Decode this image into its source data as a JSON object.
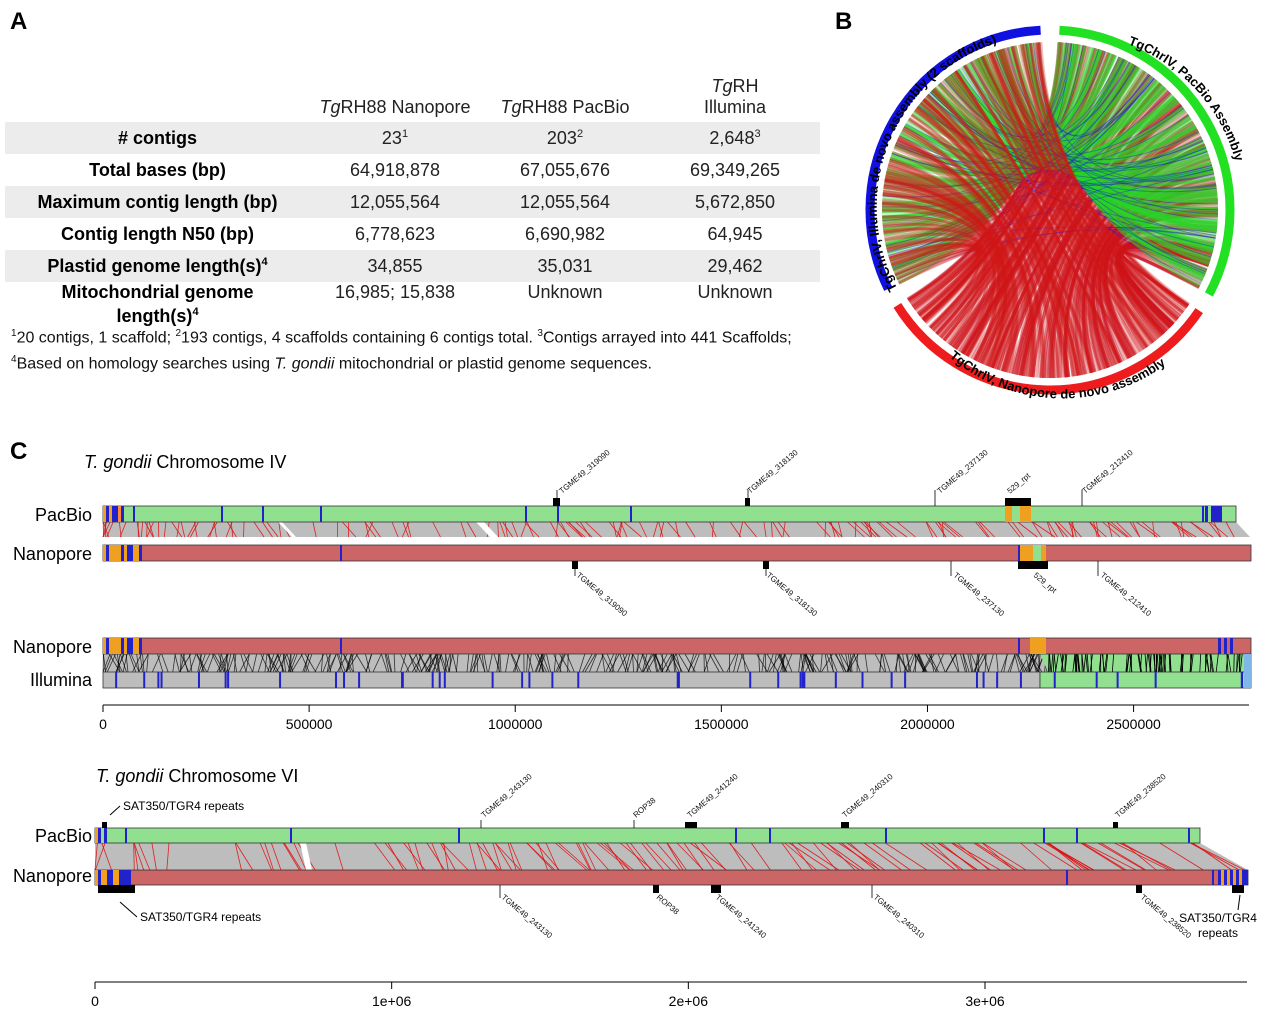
{
  "panels": {
    "a": "A",
    "b": "B",
    "c": "C"
  },
  "table": {
    "columns": [
      {
        "italic": "Tg",
        "rest": "RH88 Nanopore"
      },
      {
        "italic": "Tg",
        "rest": "RH88 PacBio"
      },
      {
        "italic": "Tg",
        "rest": "RH",
        "line2": "Illumina"
      }
    ],
    "rows": [
      {
        "label": "# contigs",
        "values": [
          "23",
          "203",
          "2,648"
        ],
        "sups": [
          "1",
          "2",
          "3"
        ]
      },
      {
        "label": "Total bases (bp)",
        "values": [
          "64,918,878",
          "67,055,676",
          "69,349,265"
        ]
      },
      {
        "label": "Maximum contig length (bp)",
        "values": [
          "12,055,564",
          "12,055,564",
          "5,672,850"
        ]
      },
      {
        "label": "Contig length N50 (bp)",
        "values": [
          "6,778,623",
          "6,690,982",
          "64,945"
        ]
      },
      {
        "label": "Plastid genome length(s)",
        "label_sup": "4",
        "values": [
          "34,855",
          "35,031",
          "29,462"
        ]
      },
      {
        "label": "Mitochondrial genome",
        "label2": "length(s)",
        "label_sup": "4",
        "values": [
          "16,985; 15,838",
          "Unknown",
          "Unknown"
        ]
      }
    ],
    "footnote": {
      "s1": "1",
      "t1": "20 contigs, 1 scaffold; ",
      "s2": "2",
      "t2": "193 contigs, 4 scaffolds containing 6 contigs total. ",
      "s3": "3",
      "t3": "Contigs arrayed into 441 Scaffolds; ",
      "s4": "4",
      "t4": "Based on homology searches using ",
      "t5": "T. gondii",
      "t6": " mitochondrial or plastid genome sequences."
    }
  },
  "circos": {
    "labels": {
      "illumina": "TgChrIV, Illumina de novo assembly (2 scaffolds)",
      "pacbio": "TgChrIV, PacBio Assembly",
      "nanopore": "TgChrIV, Nanopore de novo assembly"
    },
    "colors": {
      "illumina": "#1010e0",
      "pacbio": "#22e022",
      "nanopore": "#ee1c1c",
      "nanopore_links": "#cc1020"
    }
  },
  "chr4": {
    "title_italic": "T. gondii",
    "title_rest": " Chromosome IV",
    "track_labels": {
      "pacbio": "PacBio",
      "nanopore": "Nanopore",
      "nanopore2": "Nanopore",
      "illumina": "Illumina"
    },
    "pacbio_genes": [
      "TGME49_319090",
      "TGME49_318130",
      "TGME49_237130",
      "529_rpt",
      "TGME49_212410"
    ],
    "nanopore_genes": [
      "TGME49_319090",
      "TGME49_318130",
      "TGME49_237130",
      "529_rpt",
      "TGME49_212410"
    ],
    "axis": {
      "ticks": [
        0,
        500000,
        1000000,
        1500000,
        2000000,
        2500000
      ],
      "tick_labels": [
        "0",
        "500000",
        "1000000",
        "1500000",
        "2000000",
        "2500000"
      ]
    }
  },
  "chr6": {
    "title_italic": "T. gondii",
    "title_rest": " Chromosome VI",
    "track_labels": {
      "pacbio": "PacBio",
      "nanopore": "Nanopore"
    },
    "pacbio_genes": [
      "TGME49_243130",
      "ROP38",
      "TGME49_241240",
      "TGME49_240310",
      "TGME49_238520"
    ],
    "nanopore_genes": [
      "TGME49_243130",
      "ROP38",
      "TGME49_241240",
      "TGME49_240310",
      "TGME49_238520"
    ],
    "repeat_label": "SAT350/TGR4 repeats",
    "repeat_label_right1": "SAT350/TGR4",
    "repeat_label_right2": "repeats",
    "axis": {
      "ticks": [
        0,
        1000000,
        2000000,
        3000000
      ],
      "tick_labels": [
        "0",
        "1e+06",
        "2e+06",
        "3e+06"
      ]
    }
  },
  "colors": {
    "pacbio": "#90e090",
    "nanopore": "#cc6666",
    "gray": "#bdbdbd",
    "blue": "#2222cc",
    "orange": "#f0a020",
    "red_line": "#e01010"
  }
}
